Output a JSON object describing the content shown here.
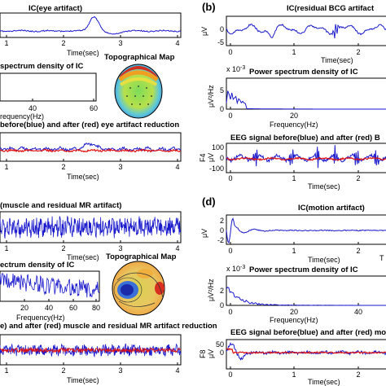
{
  "figure": {
    "panel_labels": {
      "b": "(b)",
      "d": "(d)"
    },
    "colors": {
      "signal": "#1a1acc",
      "after": "#e01010",
      "axis": "#000000"
    }
  },
  "text": {
    "a_ic_title": "IC(eye artifact)",
    "a_time1": "Time(sec)",
    "a_psd_title": "spectrum density of IC",
    "a_freq": "requency(Hz)",
    "a_topo": "Topographical Map",
    "a_eeg_title": "before(blue) and after (red) eye artifact reduction",
    "a_time2": "Time(sec)",
    "b_ic_title": "IC(residual BCG artifact",
    "b_uv": "μV",
    "b_time1": "Time(sec)",
    "b_psd_title": "Power spectrum density of IC",
    "b_exp": "x 10",
    "b_exp_sup": "-3",
    "b_psd_ylab": "μV²/Hz",
    "b_freq": "Frequency(Hz)",
    "b_eeg_title": "EEG signal before(blue) and after (red) B",
    "b_ch": "F4",
    "b_uv2": "μV",
    "b_time2": "Time(sec)",
    "c_ic_title": "(muscle and residual MR artifact)",
    "c_time1": "Time(sec)",
    "c_psd_title": "ectrum density of IC",
    "c_topo": "Topographical Map",
    "c_freq": "Frequency(Hz)",
    "c_eeg_title": "e) and after (red) muscle and residual MR artifact reduction",
    "c_time2": "Time(sec)",
    "d_ic_title": "IC(motion artifact)",
    "d_uv": "μV",
    "d_time1": "Time(sec)",
    "d_psd_title": "Power spectrum density of IC",
    "d_exp": "x 10",
    "d_exp_sup": "-3",
    "d_psd_ylab": "μV²/Hz",
    "d_freq": "Frequency(Hz)",
    "d_eeg_title": "EEG signal before(blue) and after (red) moti",
    "d_ch": "F8",
    "d_uv2": "μV",
    "d_time2": "Time(sec)",
    "edge_T": "T"
  },
  "ticks": {
    "a_ic_x": [
      "1",
      "2",
      "3",
      "4"
    ],
    "a_psd_x": [
      "40",
      "60"
    ],
    "a_eeg_x": [
      "1",
      "2",
      "3",
      "4"
    ],
    "b_ic_x": [
      "0",
      "1",
      "2"
    ],
    "b_ic_y": [
      "0",
      "-5"
    ],
    "b_psd_x": [
      "0",
      "20"
    ],
    "b_psd_y": [
      "5",
      "0"
    ],
    "b_eeg_x": [
      "0",
      "1",
      "2"
    ],
    "b_eeg_y": [
      "100",
      "0",
      "-100"
    ],
    "c_ic_x": [
      "1",
      "2",
      "3",
      "4"
    ],
    "c_psd_x": [
      "20",
      "40",
      "60",
      "80"
    ],
    "c_eeg_x": [
      "1",
      "2",
      "3",
      "4"
    ],
    "d_ic_x": [
      "0",
      "1",
      "2"
    ],
    "d_ic_y": [
      "2",
      "0",
      "-2"
    ],
    "d_psd_x": [
      "0",
      "20",
      "40"
    ],
    "d_psd_y": [
      "2",
      "0"
    ],
    "d_eeg_x": [
      "0",
      "1",
      "2"
    ],
    "d_eeg_y": [
      "50",
      "0"
    ]
  },
  "chart_data": [
    {
      "type": "line",
      "title": "IC(eye artifact)",
      "xlabel": "Time(sec)",
      "xlim": [
        0.8,
        4
      ],
      "series": [
        {
          "values": "baseline with a single positive eye-blink peak near 2.5 s"
        }
      ]
    },
    {
      "type": "line",
      "title": "spectrum density of IC",
      "xlabel": "requency(Hz)",
      "xlim": [
        0,
        60
      ],
      "series": [
        {
          "values": "flat, near zero"
        }
      ]
    },
    {
      "type": "line",
      "title": "before(blue) and after (red) eye artifact reduction",
      "xlabel": "Time(sec)",
      "xlim": [
        0.8,
        4
      ],
      "series": [
        {
          "values": "blue raw EEG with bump near 2.5 s"
        },
        {
          "values": "red cleaned EEG, flat"
        }
      ]
    },
    {
      "type": "line",
      "title": "IC(residual BCG artifact",
      "xlabel": "Time(sec)",
      "ylabel": "μV",
      "xlim": [
        0,
        2.4
      ],
      "ylim": [
        -5,
        3
      ],
      "series": [
        {
          "values": "oscillatory BCG waveform"
        }
      ]
    },
    {
      "type": "line",
      "title": "Power spectrum density of IC",
      "xlabel": "Frequency(Hz)",
      "ylabel": "μV²/Hz",
      "xlim": [
        0,
        45
      ],
      "ylim": [
        0,
        6
      ],
      "series": [
        {
          "values": "peaks below 5 Hz, near zero above"
        }
      ]
    },
    {
      "type": "line",
      "title": "EEG signal before(blue) and after (red) B",
      "xlabel": "Time(sec)",
      "ylabel": "F4 μV",
      "xlim": [
        0,
        2.4
      ],
      "ylim": [
        -100,
        100
      ],
      "series": [
        {
          "values": "blue with BCG spikes"
        },
        {
          "values": "red cleaned"
        }
      ]
    },
    {
      "type": "line",
      "title": "(muscle and residual MR artifact)",
      "xlabel": "Time(sec)",
      "xlim": [
        0.8,
        4
      ],
      "series": [
        {
          "values": "dense high-frequency noise"
        }
      ]
    },
    {
      "type": "line",
      "title": "ectrum density of IC",
      "xlabel": "Frequency(Hz)",
      "xlim": [
        0,
        80
      ],
      "series": [
        {
          "values": "broadband noisy spectrum"
        }
      ]
    },
    {
      "type": "line",
      "title": "e) and after (red) muscle and residual MR artifact reduction",
      "xlabel": "Time(sec)",
      "xlim": [
        0.8,
        4
      ],
      "series": [
        {
          "values": "blue noisy EEG"
        },
        {
          "values": "red cleaned EEG"
        }
      ]
    },
    {
      "type": "line",
      "title": "IC(motion artifact)",
      "xlabel": "Time(sec)",
      "ylabel": "μV",
      "xlim": [
        0,
        2.4
      ],
      "ylim": [
        -2,
        2
      ],
      "series": [
        {
          "values": "large initial swing decaying to baseline"
        }
      ]
    },
    {
      "type": "line",
      "title": "Power spectrum density of IC",
      "xlabel": "Frequency(Hz)",
      "ylabel": "μV²/Hz",
      "xlim": [
        0,
        45
      ],
      "ylim": [
        0,
        3
      ],
      "series": [
        {
          "values": "decaying low-frequency spectrum"
        }
      ]
    },
    {
      "type": "line",
      "title": "EEG signal before(blue) and after (red) moti",
      "xlabel": "Time(sec)",
      "ylabel": "F8 μV",
      "xlim": [
        0,
        2.4
      ],
      "ylim": [
        -50,
        50
      ],
      "series": [
        {
          "values": "blue with initial motion transient"
        },
        {
          "values": "red cleaned"
        }
      ]
    }
  ]
}
